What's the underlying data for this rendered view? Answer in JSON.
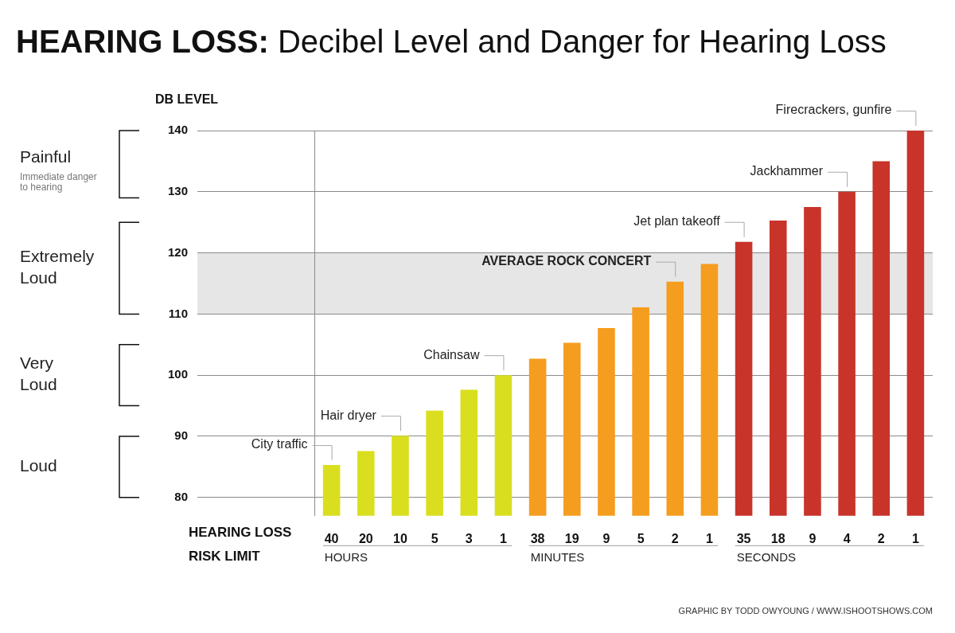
{
  "chart_data": {
    "type": "bar",
    "title": "HEARING LOSS: Decibel Level and Danger for Hearing Loss",
    "y_label": "DB LEVEL",
    "x_label": [
      "HEARING LOSS",
      "RISK LIMIT"
    ],
    "categories": [
      "40",
      "20",
      "10",
      "5",
      "3",
      "1",
      "38",
      "19",
      "9",
      "5",
      "2",
      "1",
      "35",
      "18",
      "9",
      "4",
      "2",
      "1"
    ],
    "category_units": [
      "HOURS",
      "HOURS",
      "HOURS",
      "HOURS",
      "HOURS",
      "HOURS",
      "MINUTES",
      "MINUTES",
      "MINUTES",
      "MINUTES",
      "MINUTES",
      "MINUTES",
      "SECONDS",
      "SECONDS",
      "SECONDS",
      "SECONDS",
      "SECONDS",
      "SECONDS"
    ],
    "values": [
      85.3,
      87.6,
      90.1,
      94.2,
      97.6,
      100,
      102.7,
      105.3,
      107.7,
      111.1,
      115.3,
      118.2,
      121.8,
      125.3,
      127.5,
      130,
      135,
      140
    ],
    "colors": [
      "#d9df1f",
      "#d9df1f",
      "#d9df1f",
      "#d9df1f",
      "#d9df1f",
      "#d9df1f",
      "#f59d1f",
      "#f59d1f",
      "#f59d1f",
      "#f59d1f",
      "#f59d1f",
      "#f59d1f",
      "#c8342a",
      "#c8342a",
      "#c8342a",
      "#c8342a",
      "#c8342a",
      "#c8342a"
    ],
    "annotations": [
      "City traffic",
      null,
      "Hair dryer",
      null,
      null,
      "Chainsaw",
      null,
      null,
      null,
      null,
      "AVERAGE ROCK CONCERT",
      null,
      "Jet plan takeoff",
      null,
      null,
      "Jackhammer",
      null,
      "Firecrackers, gunfire"
    ],
    "bands": [
      {
        "label": "Painful",
        "note": "Immediate danger to hearing",
        "range": [
          129,
          140
        ]
      },
      {
        "label": "Extremely Loud",
        "range": [
          110,
          125
        ]
      },
      {
        "label": "Very Loud",
        "range": [
          95,
          105
        ]
      },
      {
        "label": "Loud",
        "range": [
          80,
          90
        ]
      }
    ],
    "highlight": [
      110,
      120
    ],
    "ylim": [
      77,
      140
    ],
    "yticks": [
      80,
      90,
      100,
      110,
      120,
      130,
      140
    ],
    "grid": true,
    "source": "GRAPHIC BY TODD OWYOUNG / WWW.ISHOOTSHOWS.COM"
  }
}
